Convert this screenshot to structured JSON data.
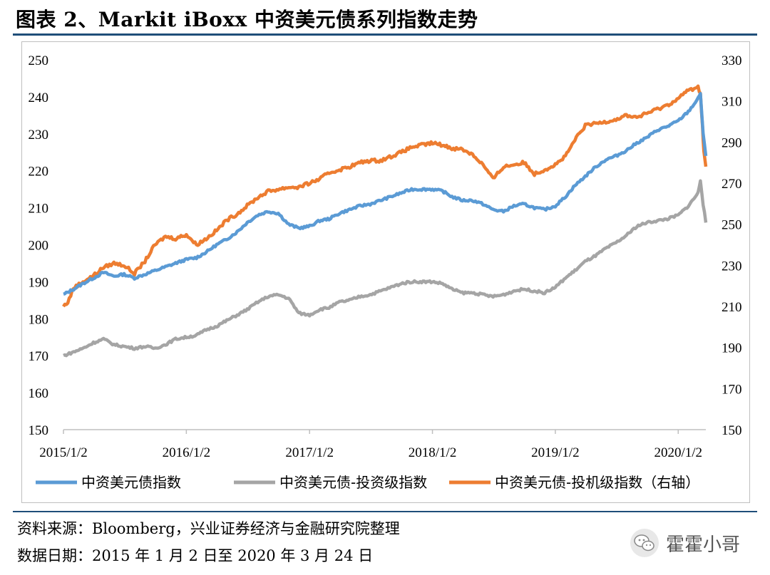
{
  "title": "图表 2、Markit iBoxx 中资美元债系列指数走势",
  "footnotes": {
    "source": "资料来源：Bloomberg，兴业证券经济与金融研究院整理",
    "date": "数据日期：2015 年 1 月 2 日至 2020 年 3 月 24 日"
  },
  "watermark": {
    "text": "霍霍小哥",
    "icon": "wechat-icon"
  },
  "chart_data": {
    "type": "line",
    "x_ticks": [
      "2015/1/2",
      "2016/1/2",
      "2017/1/2",
      "2018/1/2",
      "2019/1/2",
      "2020/1/2"
    ],
    "x_range": [
      "2015/1/2",
      "2020/3/24"
    ],
    "y_left": {
      "ticks": [
        150,
        160,
        170,
        180,
        190,
        200,
        210,
        220,
        230,
        240,
        250
      ],
      "range": [
        150,
        250
      ]
    },
    "y_right": {
      "ticks": [
        150,
        170,
        190,
        210,
        230,
        250,
        270,
        290,
        310,
        330
      ],
      "range": [
        150,
        330
      ]
    },
    "grid": false,
    "legend_position": "bottom",
    "series": [
      {
        "name": "中资美元债指数",
        "axis": "left",
        "color": "#5b9bd5",
        "points": [
          [
            "2015/1/2",
            186.5
          ],
          [
            "2015/2/1",
            188
          ],
          [
            "2015/3/1",
            189.5
          ],
          [
            "2015/4/1",
            191
          ],
          [
            "2015/5/1",
            192.5
          ],
          [
            "2015/6/1",
            191.5
          ],
          [
            "2015/7/1",
            192
          ],
          [
            "2015/8/1",
            191
          ],
          [
            "2015/9/1",
            192
          ],
          [
            "2015/10/1",
            193
          ],
          [
            "2015/11/1",
            194
          ],
          [
            "2015/12/1",
            195
          ],
          [
            "2016/1/2",
            196
          ],
          [
            "2016/2/1",
            196.5
          ],
          [
            "2016/3/1",
            198
          ],
          [
            "2016/4/1",
            200
          ],
          [
            "2016/5/1",
            201.5
          ],
          [
            "2016/6/1",
            203.5
          ],
          [
            "2016/7/1",
            206
          ],
          [
            "2016/8/1",
            208
          ],
          [
            "2016/9/1",
            209
          ],
          [
            "2016/10/1",
            208.5
          ],
          [
            "2016/11/1",
            205.5
          ],
          [
            "2016/12/1",
            204.5
          ],
          [
            "2017/1/2",
            205
          ],
          [
            "2017/2/1",
            206.5
          ],
          [
            "2017/3/1",
            207
          ],
          [
            "2017/4/1",
            208.5
          ],
          [
            "2017/5/1",
            209.5
          ],
          [
            "2017/6/1",
            210.5
          ],
          [
            "2017/7/1",
            211
          ],
          [
            "2017/8/1",
            212
          ],
          [
            "2017/9/1",
            213
          ],
          [
            "2017/10/1",
            214
          ],
          [
            "2017/11/1",
            215
          ],
          [
            "2017/12/1",
            215
          ],
          [
            "2018/1/2",
            215
          ],
          [
            "2018/2/1",
            214.5
          ],
          [
            "2018/3/1",
            213
          ],
          [
            "2018/4/1",
            212
          ],
          [
            "2018/5/1",
            212
          ],
          [
            "2018/6/1",
            211
          ],
          [
            "2018/7/1",
            209.5
          ],
          [
            "2018/8/1",
            209
          ],
          [
            "2018/9/1",
            210.5
          ],
          [
            "2018/10/1",
            211
          ],
          [
            "2018/11/1",
            210
          ],
          [
            "2018/12/1",
            209.5
          ],
          [
            "2019/1/2",
            210.5
          ],
          [
            "2019/2/1",
            213
          ],
          [
            "2019/3/1",
            216
          ],
          [
            "2019/4/1",
            218.5
          ],
          [
            "2019/5/1",
            221
          ],
          [
            "2019/6/1",
            223
          ],
          [
            "2019/7/1",
            224
          ],
          [
            "2019/8/1",
            225.5
          ],
          [
            "2019/9/1",
            227.5
          ],
          [
            "2019/10/1",
            229
          ],
          [
            "2019/11/1",
            231
          ],
          [
            "2019/12/1",
            232
          ],
          [
            "2020/1/2",
            233.5
          ],
          [
            "2020/2/1",
            236
          ],
          [
            "2020/3/1",
            239.5
          ],
          [
            "2020/3/8",
            241
          ],
          [
            "2020/3/16",
            230
          ],
          [
            "2020/3/24",
            224
          ]
        ]
      },
      {
        "name": "中资美元债-投资级指数",
        "axis": "left",
        "color": "#a5a5a5",
        "points": [
          [
            "2015/1/2",
            170
          ],
          [
            "2015/2/1",
            171
          ],
          [
            "2015/3/1",
            172
          ],
          [
            "2015/4/1",
            173.5
          ],
          [
            "2015/5/1",
            174.5
          ],
          [
            "2015/6/1",
            173
          ],
          [
            "2015/7/1",
            172.5
          ],
          [
            "2015/8/1",
            172
          ],
          [
            "2015/9/1",
            172.5
          ],
          [
            "2015/10/1",
            172
          ],
          [
            "2015/11/1",
            173
          ],
          [
            "2015/12/1",
            174.5
          ],
          [
            "2016/1/2",
            175
          ],
          [
            "2016/2/1",
            175.5
          ],
          [
            "2016/3/1",
            177
          ],
          [
            "2016/4/1",
            178
          ],
          [
            "2016/5/1",
            179.5
          ],
          [
            "2016/6/1",
            181
          ],
          [
            "2016/7/1",
            182.5
          ],
          [
            "2016/8/1",
            184.5
          ],
          [
            "2016/9/1",
            186
          ],
          [
            "2016/10/1",
            186.5
          ],
          [
            "2016/11/1",
            185.5
          ],
          [
            "2016/12/1",
            181.5
          ],
          [
            "2017/1/2",
            181
          ],
          [
            "2017/2/1",
            182.5
          ],
          [
            "2017/3/1",
            183
          ],
          [
            "2017/4/1",
            184.5
          ],
          [
            "2017/5/1",
            185
          ],
          [
            "2017/6/1",
            186
          ],
          [
            "2017/7/1",
            186.5
          ],
          [
            "2017/8/1",
            187.5
          ],
          [
            "2017/9/1",
            188.5
          ],
          [
            "2017/10/1",
            189.5
          ],
          [
            "2017/11/1",
            190
          ],
          [
            "2017/12/1",
            190
          ],
          [
            "2018/1/2",
            190
          ],
          [
            "2018/2/1",
            189.5
          ],
          [
            "2018/3/1",
            188
          ],
          [
            "2018/4/1",
            187
          ],
          [
            "2018/5/1",
            187
          ],
          [
            "2018/6/1",
            186.5
          ],
          [
            "2018/7/1",
            186
          ],
          [
            "2018/8/1",
            186.5
          ],
          [
            "2018/9/1",
            187.5
          ],
          [
            "2018/10/1",
            188
          ],
          [
            "2018/11/1",
            187.5
          ],
          [
            "2018/12/1",
            187
          ],
          [
            "2019/1/2",
            188.5
          ],
          [
            "2019/2/1",
            191
          ],
          [
            "2019/3/1",
            193
          ],
          [
            "2019/4/1",
            195.5
          ],
          [
            "2019/5/1",
            197
          ],
          [
            "2019/6/1",
            199
          ],
          [
            "2019/7/1",
            200.5
          ],
          [
            "2019/8/1",
            202.5
          ],
          [
            "2019/9/1",
            205
          ],
          [
            "2019/10/1",
            206
          ],
          [
            "2019/11/1",
            206.5
          ],
          [
            "2019/12/1",
            207
          ],
          [
            "2020/1/2",
            208
          ],
          [
            "2020/2/1",
            210.5
          ],
          [
            "2020/3/1",
            214
          ],
          [
            "2020/3/8",
            217.5
          ],
          [
            "2020/3/16",
            211
          ],
          [
            "2020/3/24",
            206
          ]
        ]
      },
      {
        "name": "中资美元债-投机级指数（右轴）",
        "axis": "right",
        "color": "#ed7d31",
        "points": [
          [
            "2015/1/2",
            210
          ],
          [
            "2015/1/15",
            212
          ],
          [
            "2015/2/1",
            219
          ],
          [
            "2015/3/1",
            222
          ],
          [
            "2015/4/1",
            225
          ],
          [
            "2015/5/1",
            229
          ],
          [
            "2015/6/1",
            231
          ],
          [
            "2015/7/1",
            230
          ],
          [
            "2015/8/1",
            226
          ],
          [
            "2015/9/1",
            232
          ],
          [
            "2015/10/1",
            240
          ],
          [
            "2015/11/1",
            244
          ],
          [
            "2015/12/1",
            243
          ],
          [
            "2016/1/2",
            245
          ],
          [
            "2016/2/1",
            240
          ],
          [
            "2016/3/1",
            243
          ],
          [
            "2016/4/1",
            247
          ],
          [
            "2016/5/1",
            252
          ],
          [
            "2016/6/1",
            255
          ],
          [
            "2016/7/1",
            259
          ],
          [
            "2016/8/1",
            263
          ],
          [
            "2016/9/1",
            266
          ],
          [
            "2016/10/1",
            267
          ],
          [
            "2016/11/1",
            268
          ],
          [
            "2016/12/1",
            268
          ],
          [
            "2017/1/2",
            270
          ],
          [
            "2017/2/1",
            272
          ],
          [
            "2017/3/1",
            275
          ],
          [
            "2017/4/1",
            276.5
          ],
          [
            "2017/5/1",
            278
          ],
          [
            "2017/6/1",
            280
          ],
          [
            "2017/7/1",
            281
          ],
          [
            "2017/8/1",
            281
          ],
          [
            "2017/9/1",
            283
          ],
          [
            "2017/10/1",
            285
          ],
          [
            "2017/11/1",
            287.5
          ],
          [
            "2017/12/1",
            288.5
          ],
          [
            "2018/1/2",
            289.5
          ],
          [
            "2018/2/1",
            288.5
          ],
          [
            "2018/3/1",
            287
          ],
          [
            "2018/4/1",
            286.5
          ],
          [
            "2018/5/1",
            284
          ],
          [
            "2018/6/1",
            279
          ],
          [
            "2018/7/1",
            272
          ],
          [
            "2018/8/1",
            278
          ],
          [
            "2018/9/1",
            279
          ],
          [
            "2018/10/1",
            280
          ],
          [
            "2018/11/1",
            274.5
          ],
          [
            "2018/12/1",
            276.5
          ],
          [
            "2019/1/2",
            279
          ],
          [
            "2019/2/1",
            283
          ],
          [
            "2019/3/1",
            291
          ],
          [
            "2019/4/1",
            298
          ],
          [
            "2019/5/1",
            299
          ],
          [
            "2019/6/1",
            300
          ],
          [
            "2019/7/1",
            301
          ],
          [
            "2019/8/1",
            303
          ],
          [
            "2019/9/1",
            302
          ],
          [
            "2019/10/1",
            304
          ],
          [
            "2019/11/1",
            306
          ],
          [
            "2019/12/1",
            308
          ],
          [
            "2020/1/2",
            311
          ],
          [
            "2020/1/20",
            314
          ],
          [
            "2020/2/1",
            315
          ],
          [
            "2020/3/1",
            317
          ],
          [
            "2020/3/8",
            313
          ],
          [
            "2020/3/14",
            298
          ],
          [
            "2020/3/18",
            285
          ],
          [
            "2020/3/24",
            278
          ]
        ]
      }
    ]
  }
}
